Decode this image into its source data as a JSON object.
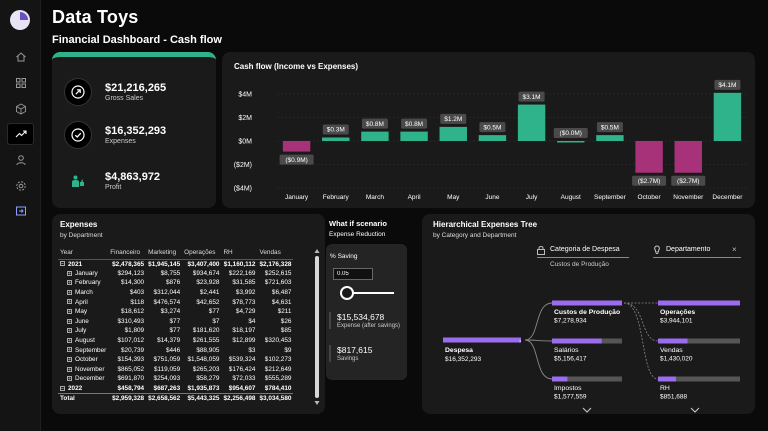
{
  "header": {
    "title": "Data Toys",
    "subtitle": "Financial Dashboard - Cash flow"
  },
  "sidebar": {
    "items": [
      "home",
      "grid",
      "cube",
      "trend",
      "user",
      "settings",
      "export"
    ],
    "active": 3
  },
  "kpis": [
    {
      "value": "$21,216,265",
      "label": "Gross Sales",
      "icon": "arrow-up-right-icon"
    },
    {
      "value": "$16,352,293",
      "label": "Expenses",
      "icon": "check-circle-icon"
    },
    {
      "value": "$4,863,972",
      "label": "Profit",
      "icon": "person-thumbs-up-icon"
    }
  ],
  "cashflow": {
    "title": "Cash flow (Income vs Expenses)",
    "chart_data": {
      "type": "bar",
      "title": "Cash flow (Income vs Expenses)",
      "categories": [
        "January",
        "February",
        "March",
        "April",
        "May",
        "June",
        "July",
        "August",
        "September",
        "October",
        "November",
        "December"
      ],
      "values": [
        -0.9,
        0.3,
        0.8,
        0.8,
        1.2,
        0.5,
        3.1,
        0.0,
        0.5,
        -2.7,
        -2.7,
        4.1
      ],
      "data_labels": [
        "($0.9M)",
        "$0.3M",
        "$0.8M",
        "$0.8M",
        "$1.2M",
        "$0.5M",
        "$3.1M",
        "($0.0M)",
        "$0.5M",
        "($2.7M)",
        "($2.7M)",
        "$4.1M"
      ],
      "yticks": [
        4,
        2,
        0,
        -2,
        -4
      ],
      "ytick_labels": [
        "$4M",
        "$2M",
        "$0M",
        "($2M)",
        "($4M)"
      ],
      "ylim": [
        -4,
        4
      ],
      "colors": {
        "positive": "#2fb38a",
        "negative": "#a8327a"
      },
      "grid": true,
      "legend": "none"
    }
  },
  "expenses": {
    "title": "Expenses",
    "subtitle": "by Department",
    "columns": [
      "Year",
      "Financeiro",
      "Marketing",
      "Operações",
      "RH",
      "Vendas"
    ],
    "rows": [
      {
        "type": "year",
        "label": "2021",
        "values": [
          "$2,478,365",
          "$1,945,145",
          "$3,407,400",
          "$1,160,112",
          "$2,176,328"
        ]
      },
      {
        "type": "month",
        "label": "January",
        "values": [
          "$294,123",
          "$8,755",
          "$934,674",
          "$222,169",
          "$252,615"
        ]
      },
      {
        "type": "month",
        "label": "February",
        "values": [
          "$14,300",
          "$876",
          "$23,928",
          "$31,585",
          "$721,603"
        ]
      },
      {
        "type": "month",
        "label": "March",
        "values": [
          "$403",
          "$312,044",
          "$2,441",
          "$3,992",
          "$6,487"
        ]
      },
      {
        "type": "month",
        "label": "April",
        "values": [
          "$118",
          "$476,574",
          "$42,652",
          "$78,773",
          "$4,631"
        ]
      },
      {
        "type": "month",
        "label": "May",
        "values": [
          "$18,612",
          "$3,274",
          "$77",
          "$4,729",
          "$211"
        ]
      },
      {
        "type": "month",
        "label": "June",
        "values": [
          "$310,493",
          "$77",
          "$7",
          "$4",
          "$26"
        ]
      },
      {
        "type": "month",
        "label": "July",
        "values": [
          "$1,809",
          "$77",
          "$181,620",
          "$18,197",
          "$85"
        ]
      },
      {
        "type": "month",
        "label": "August",
        "values": [
          "$107,012",
          "$14,379",
          "$261,555",
          "$12,899",
          "$320,453"
        ]
      },
      {
        "type": "month",
        "label": "September",
        "values": [
          "$20,739",
          "$446",
          "$88,905",
          "$3",
          "$9"
        ]
      },
      {
        "type": "month",
        "label": "October",
        "values": [
          "$154,393",
          "$751,059",
          "$1,548,059",
          "$539,324",
          "$102,273"
        ]
      },
      {
        "type": "month",
        "label": "November",
        "values": [
          "$865,052",
          "$119,059",
          "$265,203",
          "$176,424",
          "$212,649"
        ]
      },
      {
        "type": "month",
        "label": "December",
        "values": [
          "$691,870",
          "$254,093",
          "$58,279",
          "$72,033",
          "$555,289"
        ]
      },
      {
        "type": "year",
        "label": "2022",
        "values": [
          "$458,794",
          "$687,263",
          "$1,935,873",
          "$954,607",
          "$784,410"
        ]
      },
      {
        "type": "total",
        "label": "Total",
        "values": [
          "$2,959,328",
          "$2,658,562",
          "$5,443,325",
          "$2,256,498",
          "$3,034,580"
        ]
      }
    ]
  },
  "whatif": {
    "title": "What if scenario",
    "subtitle": "Expense Reduction",
    "saving_label": "% Saving",
    "saving_value": "0.05",
    "slider_value": 0.05,
    "expense_after_value": "$15,534,678",
    "expense_after_label": "Expense (after savings)",
    "savings_value": "$817,615",
    "savings_label": "Savings"
  },
  "tree": {
    "title": "Hierarchical Expenses Tree",
    "subtitle": "by Category and Department",
    "level1_header": "Categoria de Despesa",
    "level1_sub": "Custos de Produção",
    "level2_header": "Departamento",
    "root": {
      "name": "Despesa",
      "value": "$16,352,293"
    },
    "categories": [
      {
        "name": "Custos de Produção",
        "value": "$7,278,934",
        "share": 1.0,
        "selected": true
      },
      {
        "name": "Salários",
        "value": "$5,156,417",
        "share": 0.71
      },
      {
        "name": "Impostos",
        "value": "$1,577,559",
        "share": 0.22
      }
    ],
    "departments": [
      {
        "name": "Operações",
        "value": "$3,944,101",
        "share": 1.0
      },
      {
        "name": "Vendas",
        "value": "$1,430,020",
        "share": 0.36
      },
      {
        "name": "RH",
        "value": "$851,688",
        "share": 0.22
      }
    ],
    "colors": {
      "accent": "#9b6cf0",
      "track": "#555555"
    }
  }
}
